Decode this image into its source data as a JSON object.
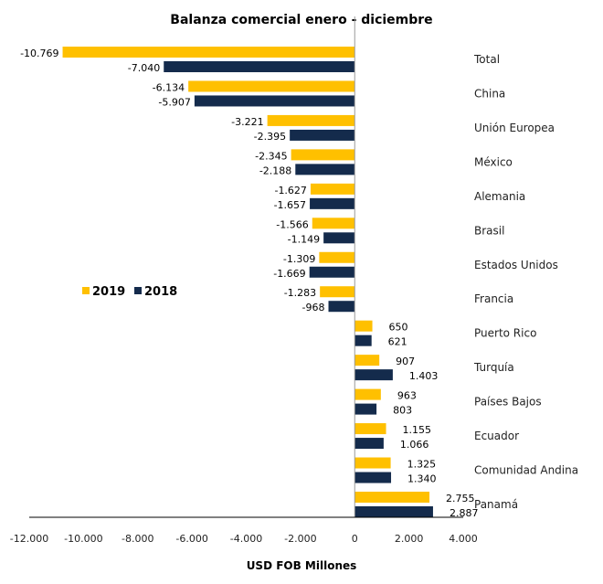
{
  "chart_data": {
    "type": "bar",
    "orientation": "horizontal",
    "title": "Balanza comercial enero - diciembre",
    "xlabel": "USD FOB Millones",
    "ylabel": "",
    "xlim": [
      -12000,
      4000
    ],
    "xticks": [
      -12000,
      -10000,
      -8000,
      -6000,
      -4000,
      -2000,
      0,
      2000,
      4000
    ],
    "xtick_labels": [
      "-12.000",
      "-10.000",
      "-8.000",
      "-6.000",
      "-4.000",
      "-2.000",
      "0",
      "2.000",
      "4.000"
    ],
    "grid": false,
    "legend_position": "left-middle",
    "categories": [
      "Total",
      "China",
      "Unión Europea",
      "México",
      "Alemania",
      "Brasil",
      "Estados Unidos",
      "Francia",
      "Puerto Rico",
      "Turquía",
      "Países Bajos",
      "Ecuador",
      "Comunidad Andina",
      "Panamá"
    ],
    "series": [
      {
        "name": "2019",
        "color": "#FFC000",
        "values": [
          -10769,
          -6134,
          -3221,
          -2345,
          -1627,
          -1566,
          -1309,
          -1283,
          650,
          907,
          963,
          1155,
          1325,
          2755
        ],
        "labels": [
          "-10.769",
          "-6.134",
          "-3.221",
          "-2.345",
          "-1.627",
          "-1.566",
          "-1.309",
          "-1.283",
          "650",
          "907",
          "963",
          "1.155",
          "1.325",
          "2.755"
        ]
      },
      {
        "name": "2018",
        "color": "#142B4C",
        "values": [
          -7040,
          -5907,
          -2395,
          -2188,
          -1657,
          -1149,
          -1669,
          -968,
          621,
          1403,
          803,
          1066,
          1340,
          2887
        ],
        "labels": [
          "-7.040",
          "-5.907",
          "-2.395",
          "-2.188",
          "-1.657",
          "-1.149",
          "-1.669",
          "-968",
          "621",
          "1.403",
          "803",
          "1.066",
          "1.340",
          "2.887"
        ]
      }
    ]
  }
}
